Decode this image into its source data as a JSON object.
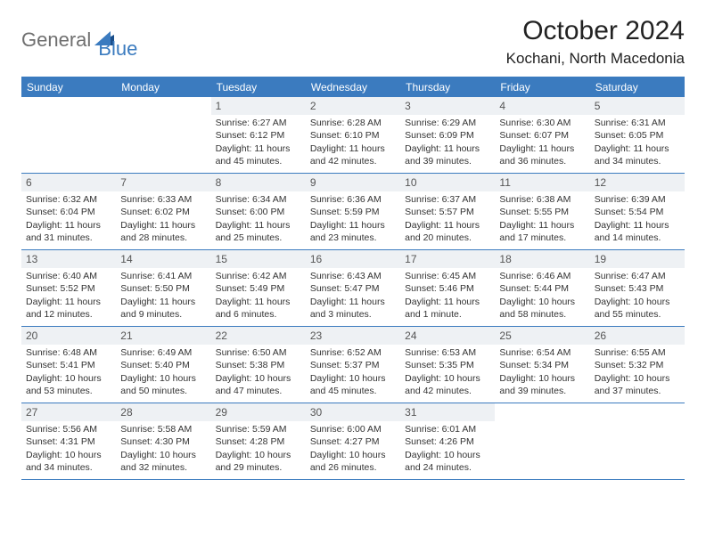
{
  "logo": {
    "part1": "General",
    "part2": "Blue"
  },
  "title": "October 2024",
  "location": "Kochani, North Macedonia",
  "day_headers": [
    "Sunday",
    "Monday",
    "Tuesday",
    "Wednesday",
    "Thursday",
    "Friday",
    "Saturday"
  ],
  "colors": {
    "accent": "#3b7bbf",
    "header_bg": "#3b7bbf",
    "header_text": "#ffffff",
    "daynum_bg": "#eef1f4",
    "text": "#333333",
    "logo_gray": "#6f6f6f",
    "logo_blue": "#3b7bbf"
  },
  "weeks": [
    [
      {
        "day": "",
        "empty": true
      },
      {
        "day": "",
        "empty": true
      },
      {
        "day": "1",
        "sunrise": "Sunrise: 6:27 AM",
        "sunset": "Sunset: 6:12 PM",
        "daylight": "Daylight: 11 hours and 45 minutes."
      },
      {
        "day": "2",
        "sunrise": "Sunrise: 6:28 AM",
        "sunset": "Sunset: 6:10 PM",
        "daylight": "Daylight: 11 hours and 42 minutes."
      },
      {
        "day": "3",
        "sunrise": "Sunrise: 6:29 AM",
        "sunset": "Sunset: 6:09 PM",
        "daylight": "Daylight: 11 hours and 39 minutes."
      },
      {
        "day": "4",
        "sunrise": "Sunrise: 6:30 AM",
        "sunset": "Sunset: 6:07 PM",
        "daylight": "Daylight: 11 hours and 36 minutes."
      },
      {
        "day": "5",
        "sunrise": "Sunrise: 6:31 AM",
        "sunset": "Sunset: 6:05 PM",
        "daylight": "Daylight: 11 hours and 34 minutes."
      }
    ],
    [
      {
        "day": "6",
        "sunrise": "Sunrise: 6:32 AM",
        "sunset": "Sunset: 6:04 PM",
        "daylight": "Daylight: 11 hours and 31 minutes."
      },
      {
        "day": "7",
        "sunrise": "Sunrise: 6:33 AM",
        "sunset": "Sunset: 6:02 PM",
        "daylight": "Daylight: 11 hours and 28 minutes."
      },
      {
        "day": "8",
        "sunrise": "Sunrise: 6:34 AM",
        "sunset": "Sunset: 6:00 PM",
        "daylight": "Daylight: 11 hours and 25 minutes."
      },
      {
        "day": "9",
        "sunrise": "Sunrise: 6:36 AM",
        "sunset": "Sunset: 5:59 PM",
        "daylight": "Daylight: 11 hours and 23 minutes."
      },
      {
        "day": "10",
        "sunrise": "Sunrise: 6:37 AM",
        "sunset": "Sunset: 5:57 PM",
        "daylight": "Daylight: 11 hours and 20 minutes."
      },
      {
        "day": "11",
        "sunrise": "Sunrise: 6:38 AM",
        "sunset": "Sunset: 5:55 PM",
        "daylight": "Daylight: 11 hours and 17 minutes."
      },
      {
        "day": "12",
        "sunrise": "Sunrise: 6:39 AM",
        "sunset": "Sunset: 5:54 PM",
        "daylight": "Daylight: 11 hours and 14 minutes."
      }
    ],
    [
      {
        "day": "13",
        "sunrise": "Sunrise: 6:40 AM",
        "sunset": "Sunset: 5:52 PM",
        "daylight": "Daylight: 11 hours and 12 minutes."
      },
      {
        "day": "14",
        "sunrise": "Sunrise: 6:41 AM",
        "sunset": "Sunset: 5:50 PM",
        "daylight": "Daylight: 11 hours and 9 minutes."
      },
      {
        "day": "15",
        "sunrise": "Sunrise: 6:42 AM",
        "sunset": "Sunset: 5:49 PM",
        "daylight": "Daylight: 11 hours and 6 minutes."
      },
      {
        "day": "16",
        "sunrise": "Sunrise: 6:43 AM",
        "sunset": "Sunset: 5:47 PM",
        "daylight": "Daylight: 11 hours and 3 minutes."
      },
      {
        "day": "17",
        "sunrise": "Sunrise: 6:45 AM",
        "sunset": "Sunset: 5:46 PM",
        "daylight": "Daylight: 11 hours and 1 minute."
      },
      {
        "day": "18",
        "sunrise": "Sunrise: 6:46 AM",
        "sunset": "Sunset: 5:44 PM",
        "daylight": "Daylight: 10 hours and 58 minutes."
      },
      {
        "day": "19",
        "sunrise": "Sunrise: 6:47 AM",
        "sunset": "Sunset: 5:43 PM",
        "daylight": "Daylight: 10 hours and 55 minutes."
      }
    ],
    [
      {
        "day": "20",
        "sunrise": "Sunrise: 6:48 AM",
        "sunset": "Sunset: 5:41 PM",
        "daylight": "Daylight: 10 hours and 53 minutes."
      },
      {
        "day": "21",
        "sunrise": "Sunrise: 6:49 AM",
        "sunset": "Sunset: 5:40 PM",
        "daylight": "Daylight: 10 hours and 50 minutes."
      },
      {
        "day": "22",
        "sunrise": "Sunrise: 6:50 AM",
        "sunset": "Sunset: 5:38 PM",
        "daylight": "Daylight: 10 hours and 47 minutes."
      },
      {
        "day": "23",
        "sunrise": "Sunrise: 6:52 AM",
        "sunset": "Sunset: 5:37 PM",
        "daylight": "Daylight: 10 hours and 45 minutes."
      },
      {
        "day": "24",
        "sunrise": "Sunrise: 6:53 AM",
        "sunset": "Sunset: 5:35 PM",
        "daylight": "Daylight: 10 hours and 42 minutes."
      },
      {
        "day": "25",
        "sunrise": "Sunrise: 6:54 AM",
        "sunset": "Sunset: 5:34 PM",
        "daylight": "Daylight: 10 hours and 39 minutes."
      },
      {
        "day": "26",
        "sunrise": "Sunrise: 6:55 AM",
        "sunset": "Sunset: 5:32 PM",
        "daylight": "Daylight: 10 hours and 37 minutes."
      }
    ],
    [
      {
        "day": "27",
        "sunrise": "Sunrise: 5:56 AM",
        "sunset": "Sunset: 4:31 PM",
        "daylight": "Daylight: 10 hours and 34 minutes."
      },
      {
        "day": "28",
        "sunrise": "Sunrise: 5:58 AM",
        "sunset": "Sunset: 4:30 PM",
        "daylight": "Daylight: 10 hours and 32 minutes."
      },
      {
        "day": "29",
        "sunrise": "Sunrise: 5:59 AM",
        "sunset": "Sunset: 4:28 PM",
        "daylight": "Daylight: 10 hours and 29 minutes."
      },
      {
        "day": "30",
        "sunrise": "Sunrise: 6:00 AM",
        "sunset": "Sunset: 4:27 PM",
        "daylight": "Daylight: 10 hours and 26 minutes."
      },
      {
        "day": "31",
        "sunrise": "Sunrise: 6:01 AM",
        "sunset": "Sunset: 4:26 PM",
        "daylight": "Daylight: 10 hours and 24 minutes."
      },
      {
        "day": "",
        "empty": true
      },
      {
        "day": "",
        "empty": true
      }
    ]
  ]
}
